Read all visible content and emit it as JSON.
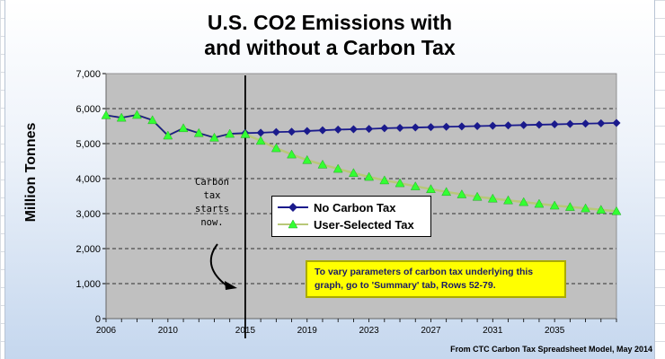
{
  "colors": {
    "no_tax": "#1a1a8c",
    "user_tax_line": "#b8c878",
    "user_tax_marker": "#33ff33",
    "note_box": "#ffff00",
    "plot_background": "#c0c0c0",
    "gridline": "#000000"
  },
  "chart_data": {
    "type": "line",
    "title": [
      "U.S. CO2 Emissions with",
      "and without a Carbon Tax"
    ],
    "ylabel": "Million Tonnes",
    "xlabel": "",
    "xlim": [
      2006,
      2039
    ],
    "ylim": [
      0,
      7000
    ],
    "yticks": [
      0,
      1000,
      2000,
      3000,
      4000,
      5000,
      6000,
      7000
    ],
    "ytick_labels": [
      "0",
      "1,000",
      "2,000",
      "3,000",
      "4,000",
      "5,000",
      "6,000",
      "7,000"
    ],
    "xticks": [
      2006,
      2010,
      2015,
      2019,
      2023,
      2027,
      2031,
      2035
    ],
    "xtick_labels": [
      "2006",
      "2010",
      "2015",
      "2019",
      "2023",
      "2027",
      "2031",
      "2035"
    ],
    "grid": "horizontal dashed",
    "legend_position": "center",
    "vertical_marker_year": 2015,
    "x": [
      2006,
      2007,
      2008,
      2009,
      2010,
      2011,
      2012,
      2013,
      2014,
      2015,
      2016,
      2017,
      2018,
      2019,
      2020,
      2021,
      2022,
      2023,
      2024,
      2025,
      2026,
      2027,
      2028,
      2029,
      2030,
      2031,
      2032,
      2033,
      2034,
      2035,
      2036,
      2037,
      2038,
      2039
    ],
    "series": [
      {
        "name": "No Carbon Tax",
        "marker": "diamond",
        "values": [
          5810,
          5740,
          5820,
          5670,
          5230,
          5440,
          5300,
          5170,
          5280,
          5300,
          5310,
          5330,
          5340,
          5360,
          5380,
          5400,
          5410,
          5420,
          5440,
          5450,
          5460,
          5470,
          5480,
          5490,
          5500,
          5510,
          5520,
          5530,
          5540,
          5550,
          5560,
          5570,
          5580,
          5590
        ]
      },
      {
        "name": "User-Selected Tax",
        "marker": "triangle",
        "values": [
          5810,
          5740,
          5820,
          5670,
          5230,
          5440,
          5300,
          5170,
          5280,
          5270,
          5080,
          4870,
          4690,
          4530,
          4400,
          4280,
          4160,
          4050,
          3950,
          3870,
          3780,
          3700,
          3620,
          3550,
          3480,
          3430,
          3380,
          3330,
          3280,
          3230,
          3190,
          3150,
          3110,
          3070
        ]
      }
    ]
  },
  "annotation": {
    "lines": [
      "Carbon",
      "tax",
      "starts",
      "now."
    ]
  },
  "note": {
    "text": "To vary parameters of carbon tax underlying this graph, go to 'Summary' tab, Rows 52-79."
  },
  "source": "From CTC Carbon Tax Spreadsheet Model, May 2014"
}
